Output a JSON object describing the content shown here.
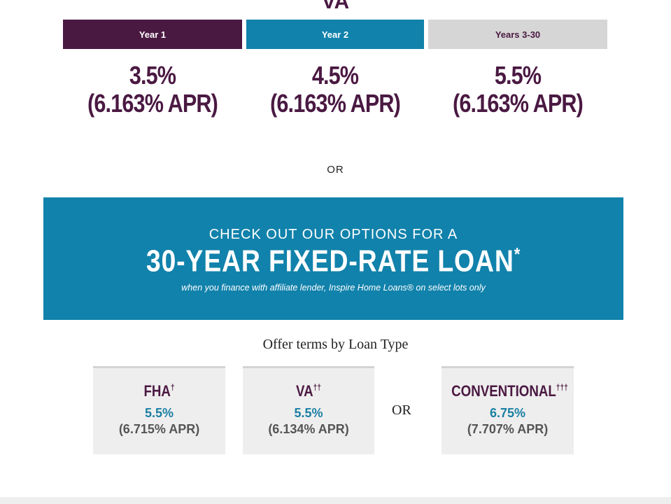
{
  "header": {
    "title": "VA"
  },
  "tiers": [
    {
      "label": "Year 1",
      "rate": "3.5%",
      "apr": "(6.163% APR)"
    },
    {
      "label": "Year 2",
      "rate": "4.5%",
      "apr": "(6.163% APR)"
    },
    {
      "label": "Years 3-30",
      "rate": "5.5%",
      "apr": "(6.163% APR)"
    }
  ],
  "separator": "OR",
  "banner": {
    "intro": "CHECK OUT OUR OPTIONS FOR A",
    "headline": "30-YEAR FIXED-RATE LOAN",
    "mark": "*",
    "note": "when you finance with affiliate lender, Inspire Home Loans® on select lots only"
  },
  "offers": {
    "title": "Offer terms by Loan Type",
    "or": "OR",
    "cards": [
      {
        "name": "FHA",
        "mark": "†",
        "rate": "5.5%",
        "apr": "(6.715% APR)"
      },
      {
        "name": "VA",
        "mark": "††",
        "rate": "5.5%",
        "apr": "(6.134% APR)"
      },
      {
        "name": "CONVENTIONAL",
        "mark": "†††",
        "rate": "6.75%",
        "apr": "(7.707% APR)"
      }
    ]
  }
}
